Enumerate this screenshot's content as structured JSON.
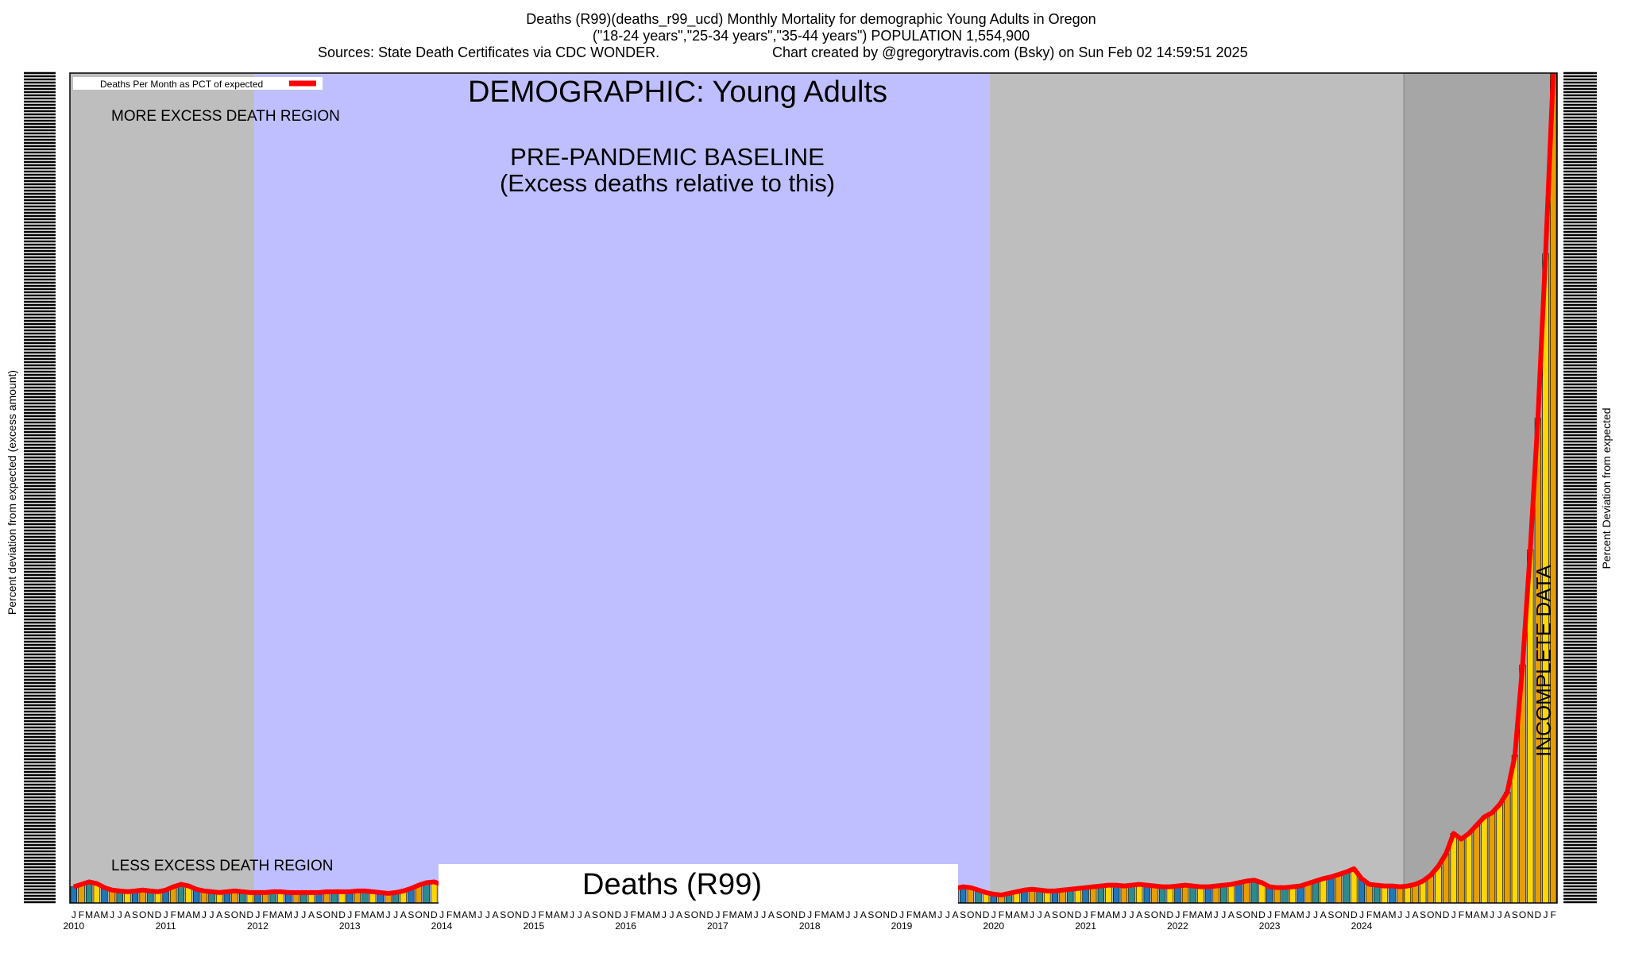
{
  "header": {
    "line1": "Deaths (R99)(deaths_r99_ucd) Monthly Mortality for demographic Young Adults in Oregon",
    "line2": "(\"18-24 years\",\"25-34 years\",\"35-44 years\") POPULATION 1,554,900",
    "line3_left": "Sources: State Death Certificates via CDC WONDER.",
    "line3_right": "Chart created by @gregorytravis.com (Bsky) on Sun Feb 02 14:59:51 2025"
  },
  "chart_data": {
    "type": "bar",
    "title": "DEMOGRAPHIC: Young Adults",
    "ylabel_left": "Percent deviation from expected (excess amount)",
    "ylabel_right": "Percent Deviation from expected",
    "legend": {
      "label": "Deaths Per Month as PCT of expected",
      "placement": "top-left",
      "color": "#ff0000"
    },
    "regions": {
      "more_excess": "MORE EXCESS DEATH REGION",
      "less_excess": "LESS EXCESS DEATH REGION",
      "baseline_line1": "PRE-PANDEMIC BASELINE",
      "baseline_line2": "(Excess deaths relative to this)",
      "incomplete": "INCOMPLETE DATA",
      "baseline_start": "2012-01",
      "baseline_end": "2019-12",
      "incomplete_start": "2024-07"
    },
    "bottom_label": "Deaths (R99)",
    "month_letters": [
      "J",
      "F",
      "M",
      "A",
      "M",
      "J",
      "J",
      "A",
      "S",
      "O",
      "N",
      "D"
    ],
    "years": [
      "2010",
      "2011",
      "2012",
      "2013",
      "2014",
      "2015",
      "2016",
      "2017",
      "2018",
      "2019",
      "2020",
      "2021",
      "2022",
      "2023",
      "2024"
    ],
    "ylim": [
      0,
      100
    ],
    "grid": false,
    "colors": {
      "baseline": "#bfbfff",
      "outside": "#bebebe",
      "line": "#ff0000",
      "bar_blue": "#1f77b4",
      "bar_orange": "#e69f00",
      "bar_yellow": "#ffd700",
      "bar_teal": "#2c8c8c"
    },
    "series": [
      {
        "values": [
          1.0,
          1.3,
          1.6,
          1.4,
          0.9,
          0.6,
          0.5,
          0.4,
          0.5,
          0.6,
          0.5,
          0.4,
          0.6,
          1.0,
          1.3,
          1.1,
          0.7,
          0.5,
          0.4,
          0.3,
          0.4,
          0.5,
          0.4,
          0.3,
          0.3,
          0.3,
          0.4,
          0.4,
          0.3,
          0.3,
          0.3,
          0.3,
          0.3,
          0.4,
          0.4,
          0.4,
          0.4,
          0.5,
          0.5,
          0.4,
          0.3,
          0.2,
          0.3,
          0.5,
          0.8,
          1.2,
          1.5,
          1.6,
          1.3,
          1.0,
          0.8,
          0.7,
          0.6,
          0.5,
          0.4,
          0.3,
          0.3,
          0.4,
          0.5,
          0.6,
          0.7,
          0.7,
          0.6,
          0.5,
          0.4,
          0.3,
          0.3,
          0.3,
          0.3,
          0.4,
          0.5,
          0.6,
          0.6,
          0.7,
          0.8,
          0.8,
          0.7,
          0.5,
          0.3,
          0.1,
          0.0,
          0.0,
          0.1,
          0.2,
          0.3,
          0.4,
          0.5,
          0.6,
          0.6,
          0.5,
          0.5,
          0.5,
          0.6,
          0.6,
          0.5,
          0.4,
          0.4,
          0.4,
          0.5,
          0.5,
          0.5,
          0.5,
          0.4,
          0.4,
          0.5,
          0.6,
          0.6,
          0.5,
          0.4,
          0.3,
          0.2,
          0.2,
          0.3,
          0.4,
          0.6,
          0.8,
          1.0,
          0.9,
          0.6,
          0.3,
          0.1,
          0.0,
          0.2,
          0.4,
          0.6,
          0.7,
          0.6,
          0.5,
          0.5,
          0.6,
          0.7,
          0.8,
          0.9,
          1.0,
          1.1,
          1.2,
          1.2,
          1.1,
          1.2,
          1.3,
          1.2,
          1.1,
          1.0,
          1.0,
          1.1,
          1.2,
          1.1,
          1.0,
          1.0,
          1.1,
          1.2,
          1.3,
          1.5,
          1.7,
          1.8,
          1.5,
          1.0,
          0.9,
          0.9,
          1.0,
          1.1,
          1.4,
          1.7,
          2.0,
          2.2,
          2.5,
          2.8,
          3.2,
          2.0,
          1.3,
          1.2,
          1.1,
          1.1,
          1.0,
          1.1,
          1.3,
          1.7,
          2.4,
          3.5,
          5.0,
          7.5,
          6.8,
          7.5,
          8.5,
          9.5,
          10.0,
          11.0,
          12.5,
          17.0,
          28.0,
          42.0,
          58.0,
          78.0,
          100.0
        ]
      }
    ]
  }
}
